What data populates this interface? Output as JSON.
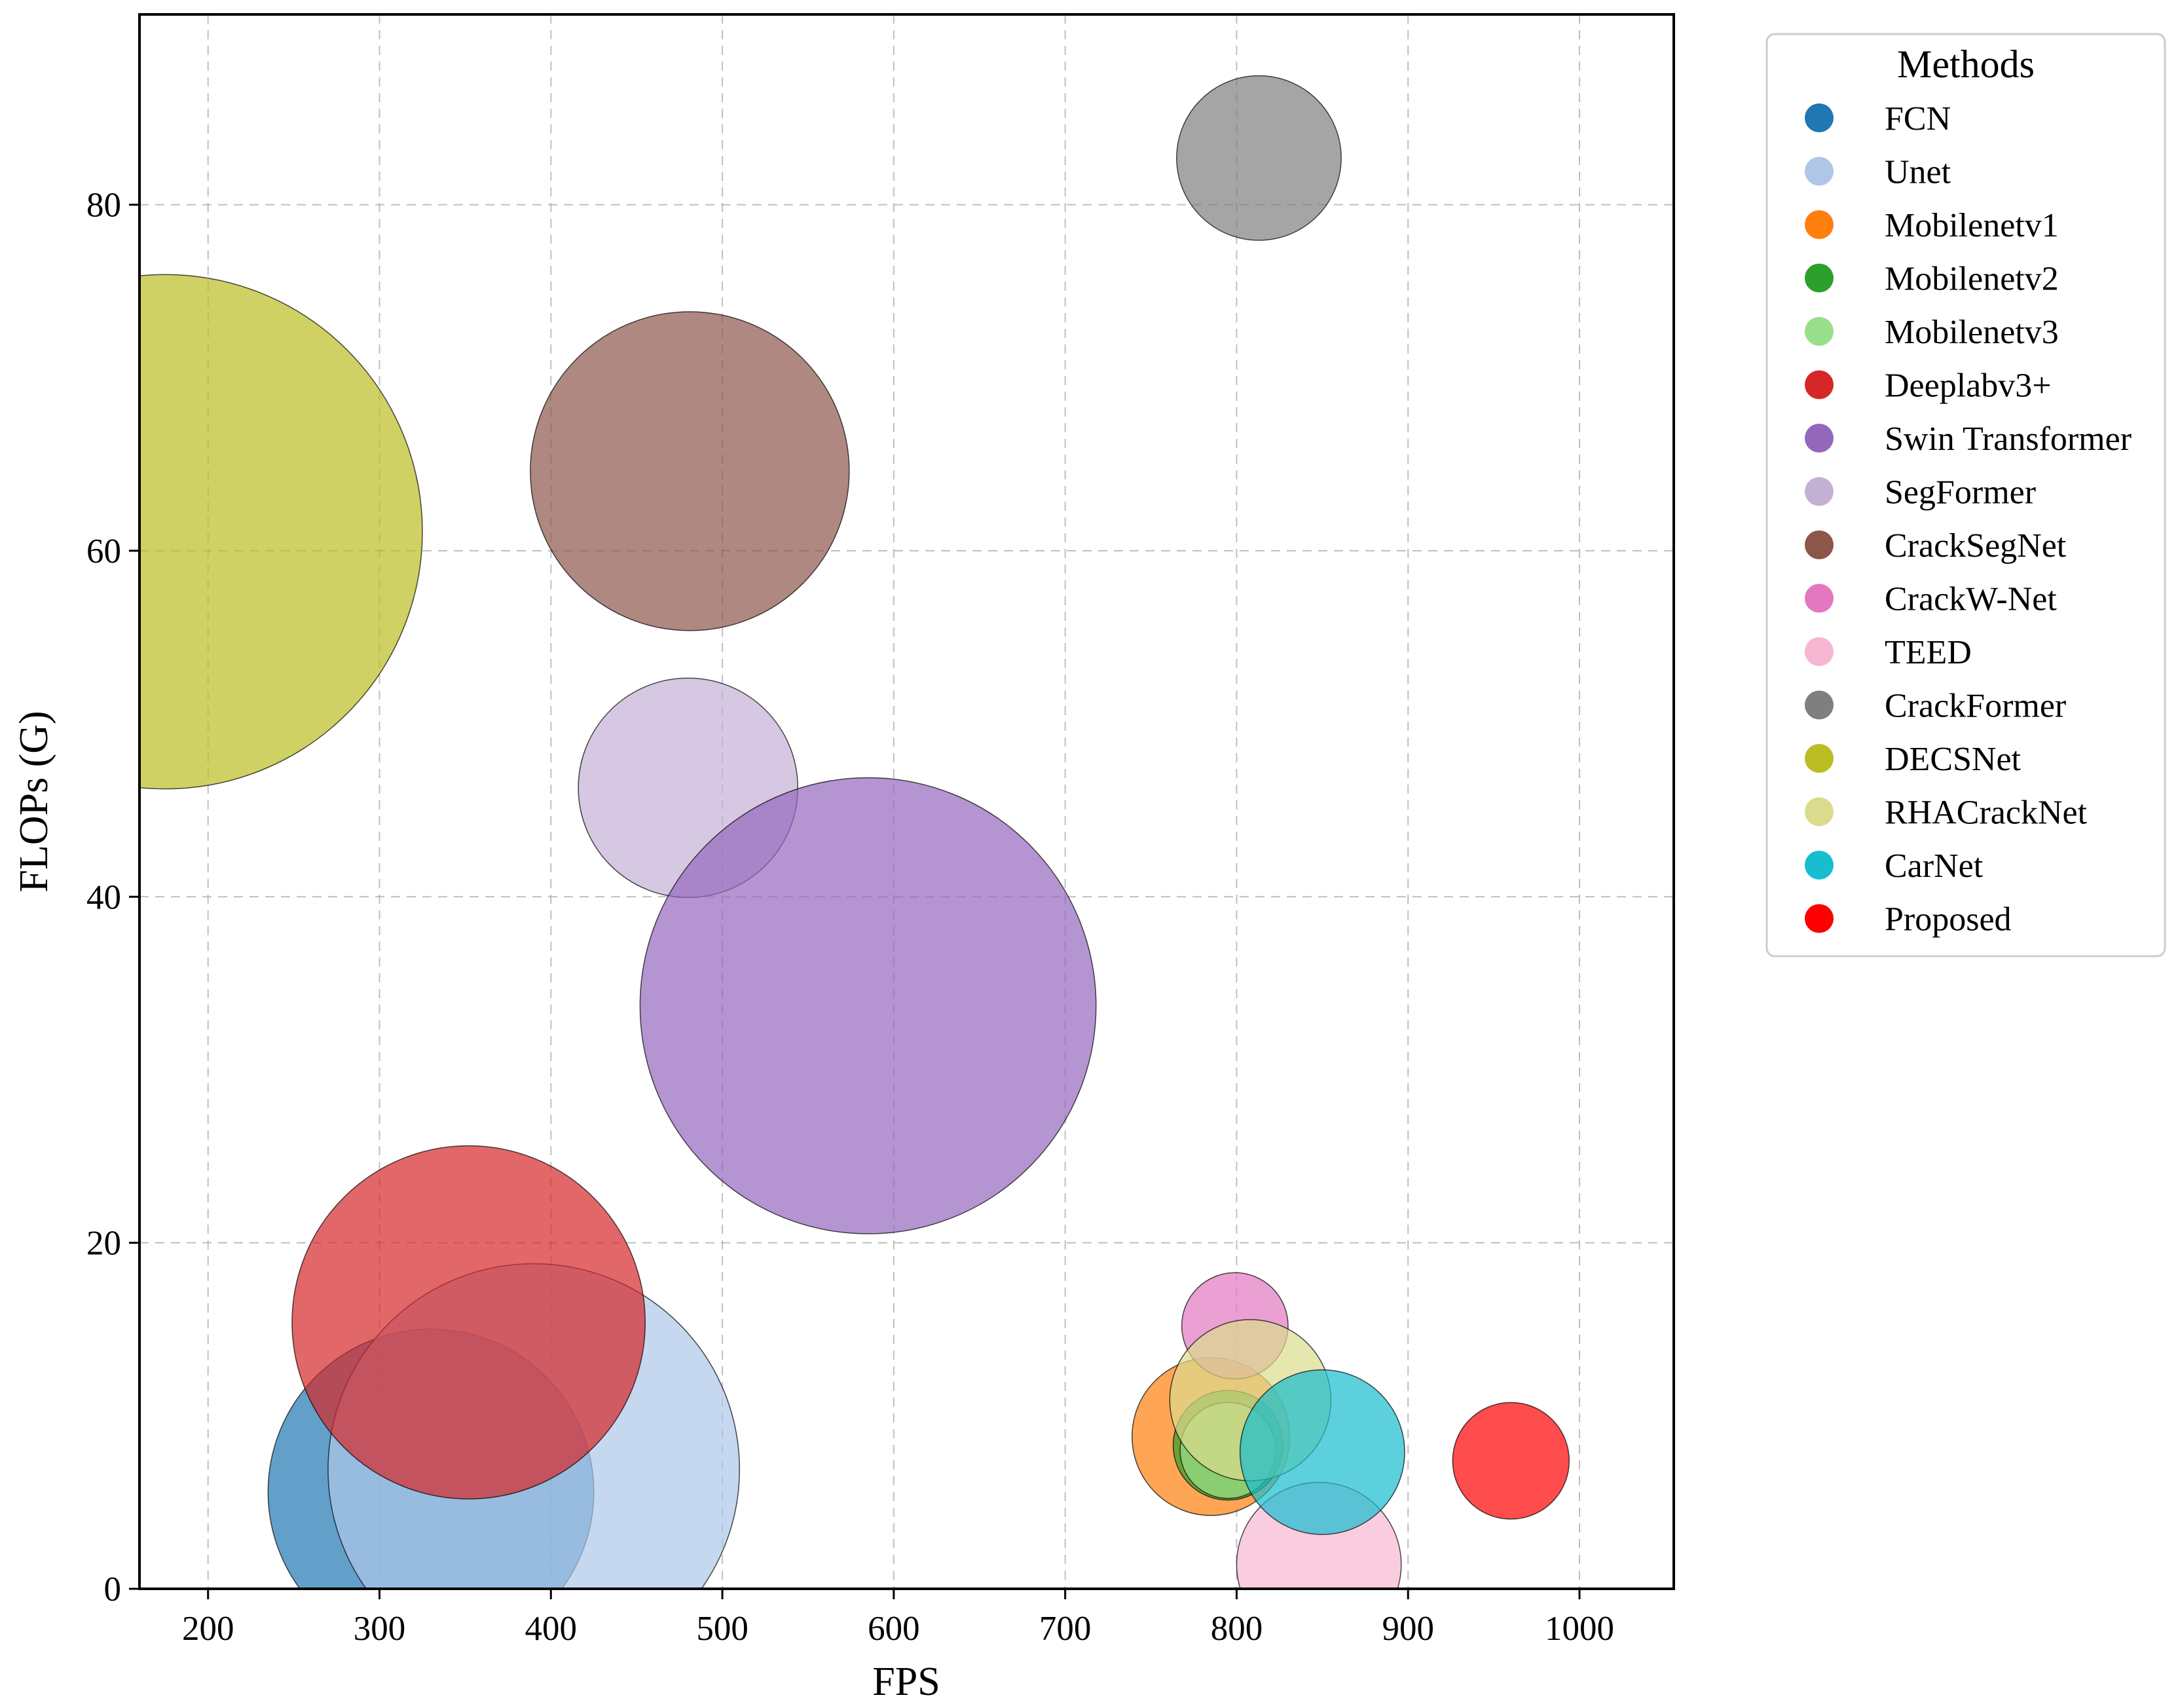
{
  "chart_data": {
    "type": "scatter",
    "variant": "bubble",
    "xlabel": "FPS",
    "ylabel": "FLOPs (G)",
    "xlim": [
      160,
      1055
    ],
    "ylim": [
      0,
      91
    ],
    "xticks": [
      200,
      300,
      400,
      500,
      600,
      700,
      800,
      900,
      1000
    ],
    "yticks": [
      0,
      20,
      40,
      60,
      80
    ],
    "grid": true,
    "legend_title": "Methods",
    "legend_position": "outside-top-right",
    "bubble_size_note": "bubble radius given in FPS (x-axis) data units",
    "series": [
      {
        "name": "FCN",
        "color": "#1f77b4",
        "x": 330,
        "y": 5.6,
        "r": 95
      },
      {
        "name": "Unet",
        "color": "#aec7e8",
        "x": 390,
        "y": 6.9,
        "r": 120
      },
      {
        "name": "Mobilenetv1",
        "color": "#ff7f0e",
        "x": 785,
        "y": 8.8,
        "r": 46
      },
      {
        "name": "Mobilenetv2",
        "color": "#2ca02c",
        "x": 795,
        "y": 8.3,
        "r": 32
      },
      {
        "name": "Mobilenetv3",
        "color": "#98df8a",
        "x": 795,
        "y": 8.0,
        "r": 28
      },
      {
        "name": "Deeplabv3+",
        "color": "#d62728",
        "x": 352,
        "y": 15.4,
        "r": 103
      },
      {
        "name": "Swin Transformer",
        "color": "#9467bd",
        "x": 585,
        "y": 33.7,
        "r": 133
      },
      {
        "name": "SegFormer",
        "color": "#c5b0d5",
        "x": 480,
        "y": 46.3,
        "r": 64
      },
      {
        "name": "CrackSegNet",
        "color": "#8c564b",
        "x": 481,
        "y": 64.6,
        "r": 93
      },
      {
        "name": "CrackW-Net",
        "color": "#e377c2",
        "x": 799,
        "y": 15.2,
        "r": 31
      },
      {
        "name": "TEED",
        "color": "#f7b6d2",
        "x": 848,
        "y": 1.4,
        "r": 48
      },
      {
        "name": "CrackFormer",
        "color": "#7f7f7f",
        "x": 813,
        "y": 82.7,
        "r": 48
      },
      {
        "name": "DECSNet",
        "color": "#bcbd22",
        "x": 175,
        "y": 61.1,
        "r": 150
      },
      {
        "name": "RHACrackNet",
        "color": "#dbdb8d",
        "x": 808,
        "y": 10.9,
        "r": 47
      },
      {
        "name": "CarNet",
        "color": "#17becf",
        "x": 850,
        "y": 7.9,
        "r": 48
      },
      {
        "name": "Proposed",
        "color": "#ff0000",
        "x": 960,
        "y": 7.4,
        "r": 34
      }
    ],
    "draw_order": [
      "DECSNet",
      "CrackSegNet",
      "SegFormer",
      "Swin Transformer",
      "FCN",
      "Unet",
      "Deeplabv3+",
      "Mobilenetv1",
      "CrackW-Net",
      "Mobilenetv2",
      "Mobilenetv3",
      "RHACrackNet",
      "TEED",
      "CarNet",
      "CrackFormer",
      "Proposed"
    ]
  }
}
